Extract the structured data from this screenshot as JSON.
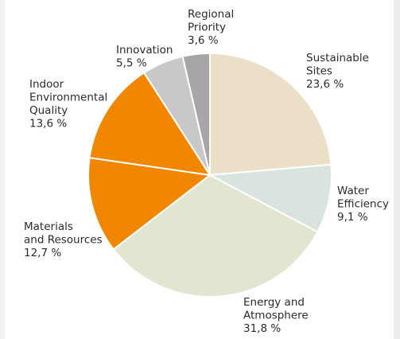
{
  "chart_data": {
    "type": "pie",
    "title": "",
    "slices": [
      {
        "label": [
          "Sustainable",
          "Sites"
        ],
        "value_text": "23,6 %",
        "value": 23.6,
        "color": "#ecdfc8"
      },
      {
        "label": [
          "Water",
          "Efficiency"
        ],
        "value_text": "9,1 %",
        "value": 9.1,
        "color": "#d9e4df"
      },
      {
        "label": [
          "Energy and",
          "Atmosphere"
        ],
        "value_text": "31,8 %",
        "value": 31.8,
        "color": "#e0e6cf"
      },
      {
        "label": [
          "Materials",
          "and Resources"
        ],
        "value_text": "12,7 %",
        "value": 12.7,
        "color": "#f18700"
      },
      {
        "label": [
          "Indoor",
          "Environmental",
          "Quality"
        ],
        "value_text": "13,6 %",
        "value": 13.6,
        "color": "#f18700"
      },
      {
        "label": [
          "Innovation"
        ],
        "value_text": "5,5 %",
        "value": 5.5,
        "color": "#c8c8c8"
      },
      {
        "label": [
          "Regional",
          "Priority"
        ],
        "value_text": "3,6 %",
        "value": 3.6,
        "color": "#a6a6a6"
      }
    ]
  }
}
